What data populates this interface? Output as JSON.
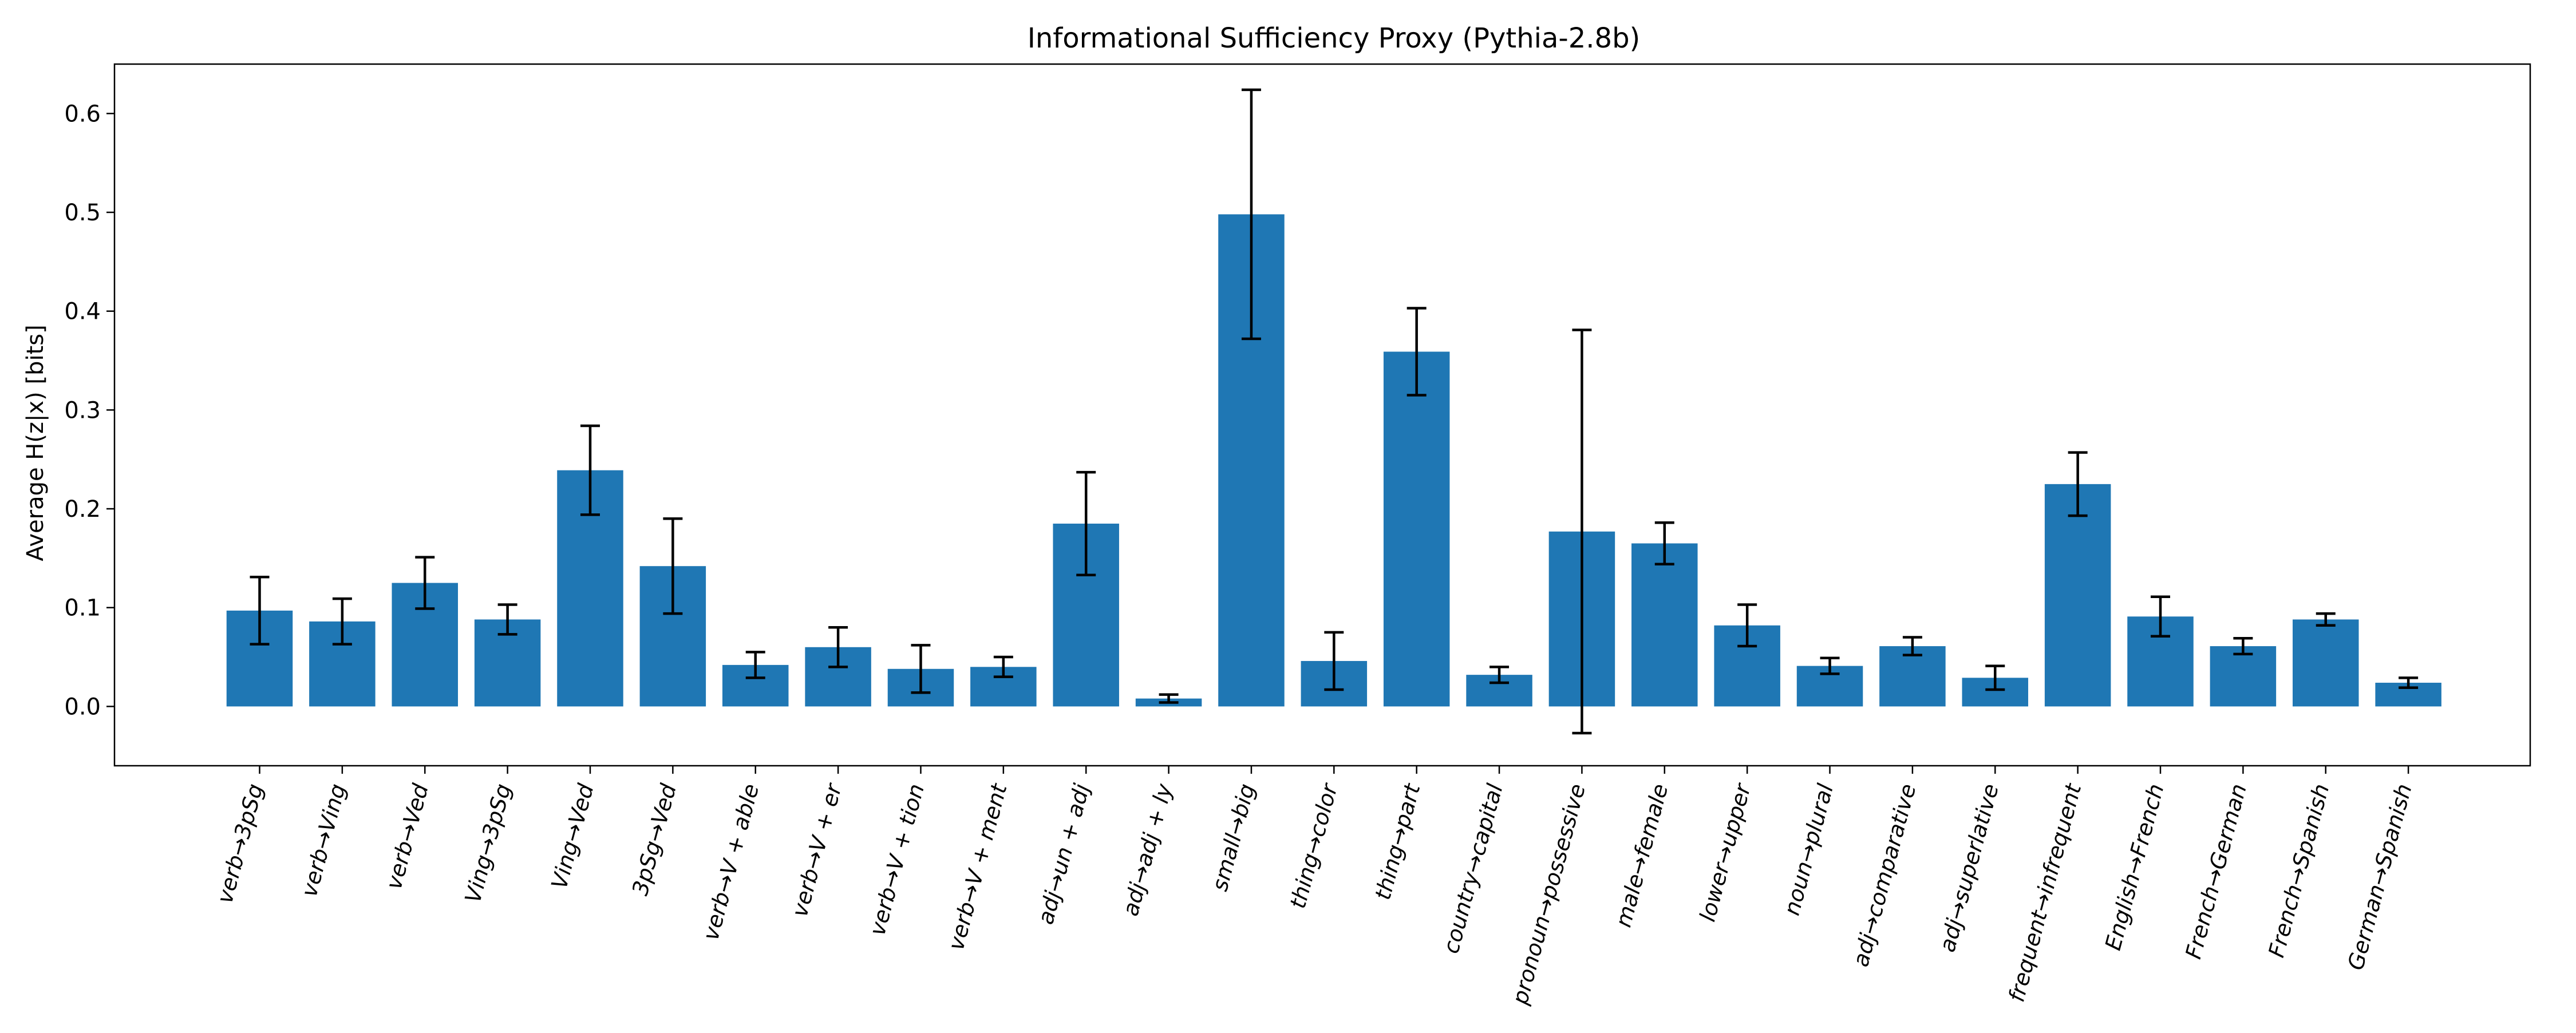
{
  "chart_data": {
    "type": "bar",
    "title": "Informational Sufficiency Proxy (Pythia-2.8b)",
    "xlabel": "",
    "ylabel": "Average H(z|x) [bits]",
    "ylim": [
      -0.06,
      0.65
    ],
    "yticks": [
      0.0,
      0.1,
      0.2,
      0.3,
      0.4,
      0.5,
      0.6
    ],
    "ytick_labels": [
      "0.0",
      "0.1",
      "0.2",
      "0.3",
      "0.4",
      "0.5",
      "0.6"
    ],
    "grid": false,
    "bar_color": "#1f77b4",
    "error_color": "#000000",
    "categories": [
      "verb→3pSg",
      "verb→Ving",
      "verb→Ved",
      "Ving→3pSg",
      "Ving→Ved",
      "3pSg→Ved",
      "verb→V + able",
      "verb→V + er",
      "verb→V + tion",
      "verb→V + ment",
      "adj→un + adj",
      "adj→adj + ly",
      "small→big",
      "thing→color",
      "thing→part",
      "country→capital",
      "pronoun→possessive",
      "male→female",
      "lower→upper",
      "noun→plural",
      "adj→comparative",
      "adj→superlative",
      "frequent→infrequent",
      "English→French",
      "French→German",
      "French→Spanish",
      "German→Spanish"
    ],
    "values": [
      0.097,
      0.086,
      0.125,
      0.088,
      0.239,
      0.142,
      0.042,
      0.06,
      0.038,
      0.04,
      0.185,
      0.008,
      0.498,
      0.046,
      0.359,
      0.032,
      0.177,
      0.165,
      0.082,
      0.041,
      0.061,
      0.029,
      0.225,
      0.091,
      0.061,
      0.088,
      0.024
    ],
    "errors": [
      0.034,
      0.023,
      0.026,
      0.015,
      0.045,
      0.048,
      0.013,
      0.02,
      0.024,
      0.01,
      0.052,
      0.004,
      0.126,
      0.029,
      0.044,
      0.008,
      0.204,
      0.021,
      0.021,
      0.008,
      0.009,
      0.012,
      0.032,
      0.02,
      0.008,
      0.006,
      0.005
    ]
  }
}
